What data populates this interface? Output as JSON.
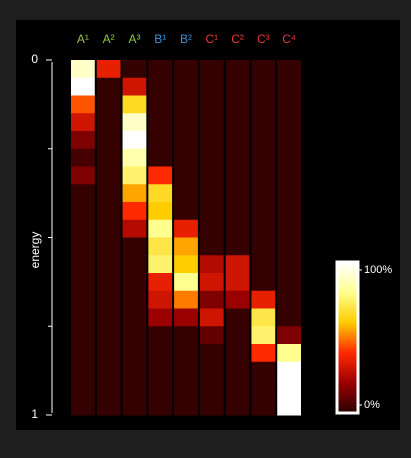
{
  "chart_data": {
    "type": "heatmap",
    "categories": [
      "A¹",
      "A²",
      "A³",
      "B¹",
      "B²",
      "C¹",
      "C²",
      "C³",
      "C⁴"
    ],
    "category_colors": [
      "#8dc63f",
      "#8dc63f",
      "#8dc63f",
      "#3a8fd6",
      "#3a8fd6",
      "#e8392a",
      "#e8392a",
      "#e8392a",
      "#e8392a"
    ],
    "ylabel": "energy",
    "ylim": [
      0,
      1
    ],
    "yticks": [
      0,
      1
    ],
    "yminor_ticks": [
      0.25,
      0.5,
      0.75
    ],
    "energy_bins": [
      0,
      0.05,
      0.1,
      0.15,
      0.2,
      0.25,
      0.3,
      0.35,
      0.4,
      0.45,
      0.5,
      0.55,
      0.6,
      0.65,
      0.7,
      0.75,
      0.8,
      0.85,
      0.9,
      0.95,
      1
    ],
    "values": [
      [
        90,
        100,
        45,
        30,
        15,
        5,
        15,
        2,
        2,
        2,
        2,
        2,
        2,
        2,
        2,
        2,
        2,
        2,
        2,
        2
      ],
      [
        35,
        2,
        2,
        2,
        2,
        2,
        2,
        2,
        2,
        2,
        2,
        2,
        2,
        2,
        2,
        2,
        2,
        2,
        2,
        2
      ],
      [
        2,
        30,
        65,
        90,
        100,
        85,
        75,
        55,
        40,
        25,
        2,
        2,
        2,
        2,
        2,
        2,
        2,
        2,
        2,
        2
      ],
      [
        2,
        2,
        2,
        2,
        2,
        2,
        40,
        65,
        60,
        80,
        70,
        75,
        35,
        30,
        20,
        2,
        2,
        2,
        2,
        2
      ],
      [
        2,
        2,
        2,
        2,
        2,
        2,
        2,
        2,
        2,
        35,
        55,
        60,
        80,
        50,
        20,
        2,
        2,
        2,
        2,
        2
      ],
      [
        2,
        2,
        2,
        2,
        2,
        2,
        2,
        2,
        2,
        2,
        2,
        25,
        30,
        15,
        30,
        10,
        2,
        2,
        2,
        2
      ],
      [
        2,
        2,
        2,
        2,
        2,
        2,
        2,
        2,
        2,
        2,
        2,
        30,
        30,
        20,
        2,
        2,
        2,
        2,
        2,
        2
      ],
      [
        2,
        2,
        2,
        2,
        2,
        2,
        2,
        2,
        2,
        2,
        2,
        2,
        2,
        35,
        70,
        75,
        40,
        2,
        2,
        2
      ],
      [
        2,
        2,
        2,
        2,
        2,
        2,
        2,
        2,
        2,
        2,
        2,
        2,
        2,
        2,
        2,
        15,
        80,
        100,
        100,
        100
      ]
    ],
    "colormap": [
      "#2a0000",
      "#9a0000",
      "#ff2a00",
      "#ffcc00",
      "#ffff90",
      "#ffffff"
    ],
    "colorbar": {
      "lim": [
        0,
        100
      ],
      "ticks": [
        {
          "value": 100,
          "label": "100%"
        },
        {
          "value": 0,
          "label": "0%"
        }
      ]
    }
  }
}
